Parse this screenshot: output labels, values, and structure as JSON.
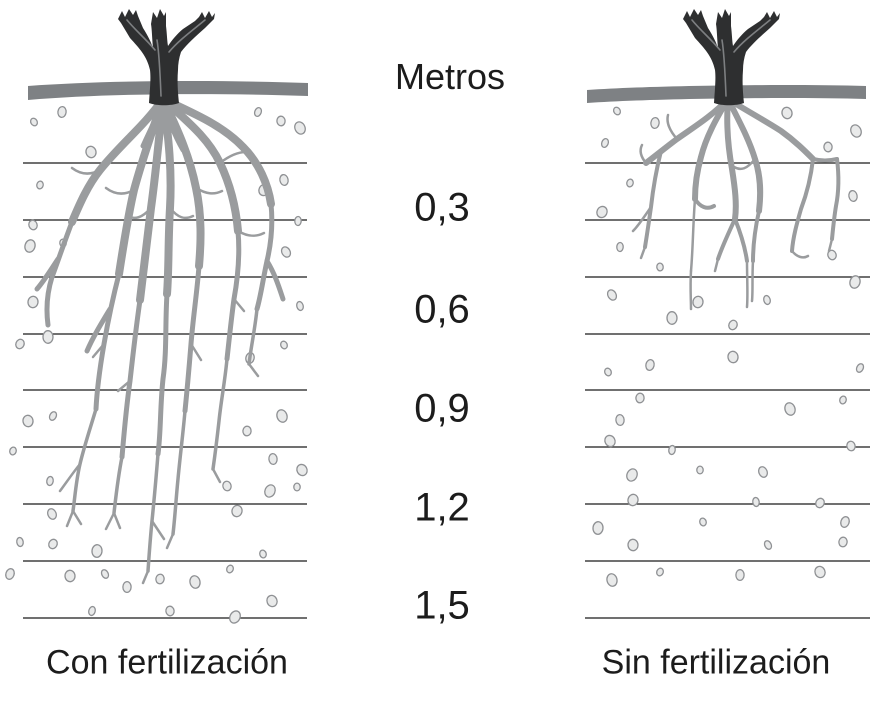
{
  "scale": {
    "title": "Metros",
    "values": [
      "0,3",
      "0,6",
      "0,9",
      "1,2",
      "1,5"
    ]
  },
  "panels": [
    {
      "caption": "Con fertilización"
    },
    {
      "caption": "Sin fertilización"
    }
  ],
  "colors": {
    "root": "#9a9c9e",
    "ground_bar": "#7e8184",
    "trunk": "#2e2f30",
    "depth_line": "#1b1b1b",
    "dot_fill": "#e9eaea",
    "dot_stroke": "#8f9194",
    "text": "#1c1c1c",
    "background": "#ffffff"
  }
}
